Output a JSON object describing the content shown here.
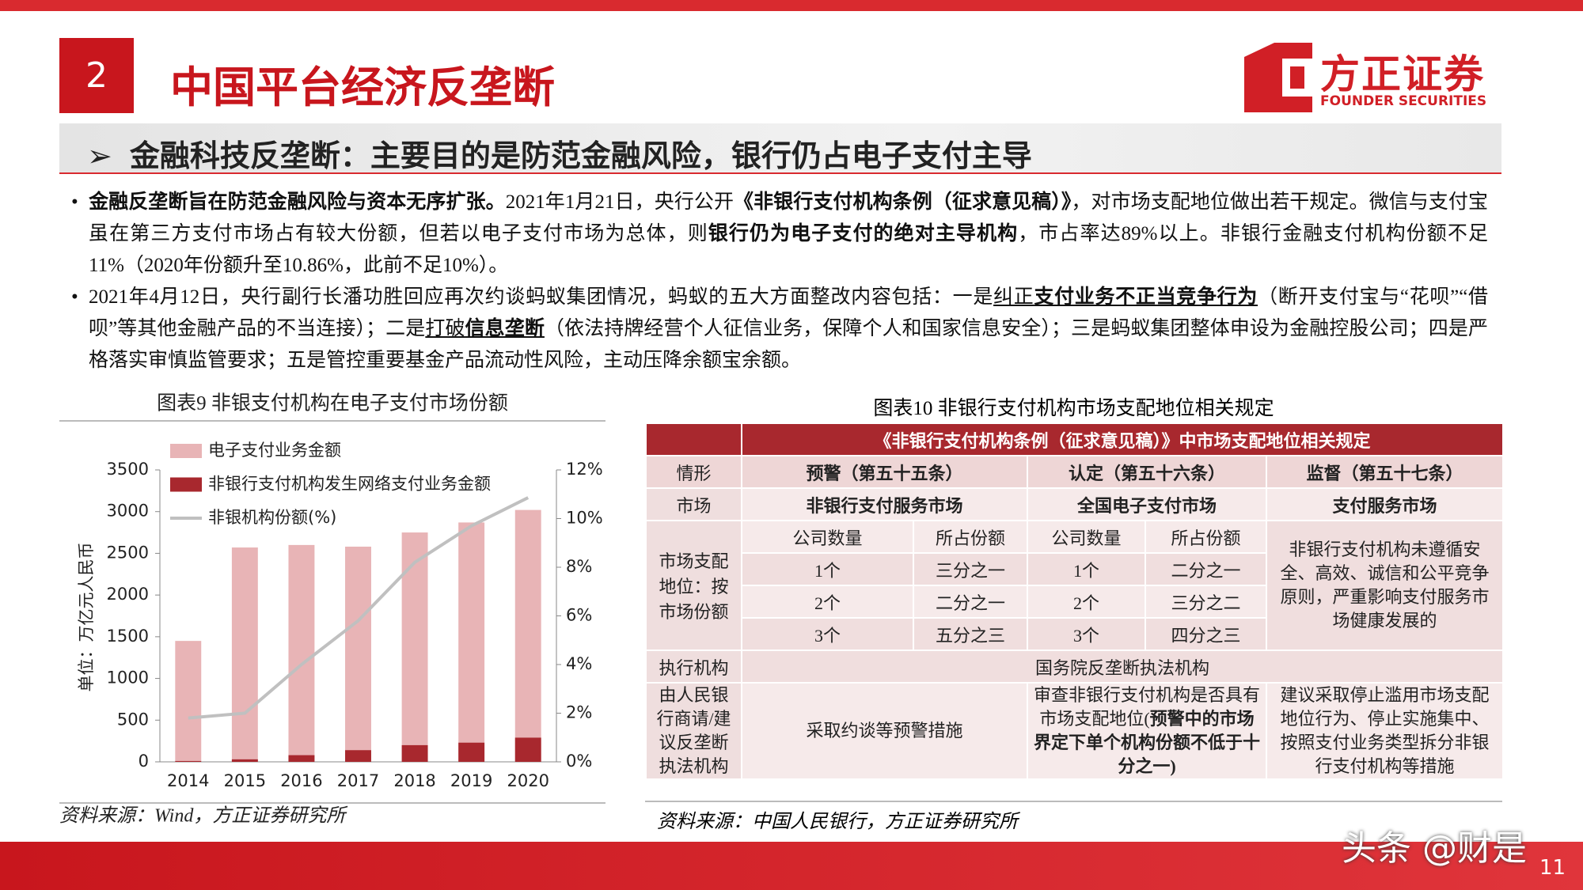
{
  "header": {
    "section_number": "2",
    "title": "中国平台经济反垄断",
    "logo_cn": "方正证券",
    "logo_en": "FOUNDER SECURITIES",
    "subtitle": "金融科技反垄断：主要目的是防范金融风险，银行仍占电子支付主导"
  },
  "bullets": [
    [
      "金融反垄断旨在防范金融风险与资本无序扩张。",
      "2021年1月21日，央行公开",
      "《非银行支付机构条例（征求意见稿）》",
      "，对市场支配地位做出若干规定。微信与支付宝虽在第三方支付市场占有较大份额，但若以电子支付市场为总体，则",
      "银行仍为电子支付的绝对主导机构",
      "，市占率达89%以上。非银行金融支付机构份额不足11%（2020年份额升至10.86%，此前不足10%）。"
    ],
    [
      "2021年4月12日，央行副行长潘功胜回应再次约谈蚂蚁集团情况，蚂蚁的五大方面整改内容包括：一是",
      "纠正",
      "支付业务不正当竞争行为",
      "（断开支付宝与“花呗”“借呗”等其他金融产品的不当连接）；二是",
      "打破",
      "信息垄断",
      "（依法持牌经营个人征信业务，保障个人和国家信息安全）；三是蚂蚁集团整体申设为金融控股公司；四是严格落实审慎监管要求；五是管控重要基金产品流动性风险，主动压降余额宝余额。"
    ]
  ],
  "chart_data": {
    "type": "bar",
    "title": "图表9 非银支付机构在电子支付市场份额",
    "y_label": "单位：万亿元人民币",
    "source": "资料来源：Wind，方正证券研究所",
    "categories": [
      "2014",
      "2015",
      "2016",
      "2017",
      "2018",
      "2019",
      "2020"
    ],
    "series": [
      {
        "name": "电子支付业务金额",
        "color": "#e8b4b6",
        "values": [
          1450,
          2570,
          2600,
          2580,
          2750,
          2870,
          3020
        ]
      },
      {
        "name": "非银行支付机构发生网络支付业务金额",
        "color": "#a8282e",
        "values": [
          10,
          30,
          80,
          140,
          200,
          230,
          290
        ]
      },
      {
        "name": "非银机构份额(%)",
        "type": "line",
        "axis": "y2",
        "color": "#c0c0c0",
        "values": [
          1.8,
          2.0,
          4.0,
          5.8,
          8.2,
          9.7,
          10.86
        ]
      }
    ],
    "ylim": [
      0,
      3500
    ],
    "yticks": [
      0,
      500,
      1000,
      1500,
      2000,
      2500,
      3000,
      3500
    ],
    "y2lim": [
      0,
      12
    ],
    "y2ticks": [
      {
        "value": 0,
        "label": "0%"
      },
      {
        "value": 2,
        "label": "2%"
      },
      {
        "value": 4,
        "label": "4%"
      },
      {
        "value": 6,
        "label": "6%"
      },
      {
        "value": 8,
        "label": "8%"
      },
      {
        "value": 10,
        "label": "10%"
      },
      {
        "value": 12,
        "label": "12%"
      }
    ],
    "grid": false,
    "legend": "top-left"
  },
  "table": {
    "title": "图表10 非银行支付机构市场支配地位相关规定",
    "caption": "《非银行支付机构条例（征求意见稿）》中市场支配地位相关规定",
    "header": [
      "情形",
      "预警（第五十五条）",
      "认定（第五十六条）",
      "监督（第五十七条）"
    ],
    "market": [
      "市场",
      "非银行支付服务市场",
      "全国电子支付市场",
      "支付服务市场"
    ],
    "dominance": {
      "label": "市场支配地位：按市场份额",
      "subheader": [
        "公司数量",
        "所占份额",
        "公司数量",
        "所占份额"
      ],
      "rows": [
        [
          "1个",
          "三分之一",
          "1个",
          "二分之一"
        ],
        [
          "2个",
          "二分之一",
          "2个",
          "三分之二"
        ],
        [
          "3个",
          "五分之三",
          "3个",
          "四分之三"
        ]
      ],
      "note": "非银行支付机构未遵循安全、高效、诚信和公平竞争原则，严重影响支付服务市场健康发展的"
    },
    "agency": [
      "执行机构",
      "国务院反垄断执法机构"
    ],
    "measures": {
      "label": "由人民银行商请/建议反垄断执法机构",
      "warning": "采取约谈等预警措施",
      "determination": [
        "审查非银行支付机构是否具有市场支配地位(",
        "预警中的市场界定下单个机构份额不低于十分之一",
        ")"
      ],
      "supervision": "建议采取停止滥用市场支配地位行为、停止实施集中、按照支付业务类型拆分非银行支付机构等措施"
    },
    "source": "资料来源：中国人民银行，方正证券研究所"
  },
  "footer": {
    "watermark": "头条 @财是",
    "page_number": "11"
  }
}
